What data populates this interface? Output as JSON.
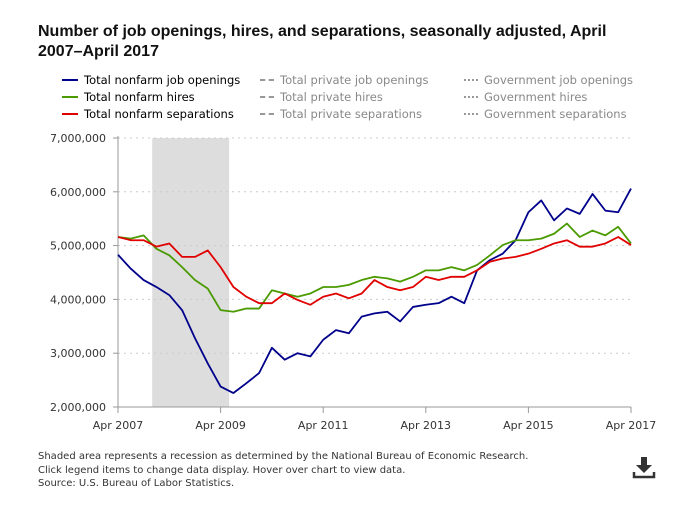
{
  "title": "Number of job openings, hires, and separations, seasonally adjusted, April 2007–April 2017",
  "legend": [
    {
      "label": "Total nonfarm job openings",
      "color": "#00008b",
      "style": "solid",
      "active": true
    },
    {
      "label": "Total nonfarm hires",
      "color": "#4a9a00",
      "style": "solid",
      "active": true
    },
    {
      "label": "Total nonfarm separations",
      "color": "#e00000",
      "style": "solid",
      "active": true
    },
    {
      "label": "Total private job openings",
      "color": "#999999",
      "style": "dashed",
      "active": false
    },
    {
      "label": "Total private hires",
      "color": "#999999",
      "style": "dashed",
      "active": false
    },
    {
      "label": "Total private separations",
      "color": "#999999",
      "style": "dashed",
      "active": false
    },
    {
      "label": "Government job openings",
      "color": "#999999",
      "style": "dash-dot",
      "active": false
    },
    {
      "label": "Government hires",
      "color": "#999999",
      "style": "dash-dot",
      "active": false
    },
    {
      "label": "Government separations",
      "color": "#999999",
      "style": "dash-dot",
      "active": false
    }
  ],
  "chart_data": {
    "type": "line",
    "title": "Number of job openings, hires, and separations, seasonally adjusted, April 2007–April 2017",
    "xlabel": "",
    "ylabel": "",
    "ylim": [
      2000000,
      7000000
    ],
    "yticks": [
      "2,000,000",
      "3,000,000",
      "4,000,000",
      "5,000,000",
      "6,000,000",
      "7,000,000"
    ],
    "ytick_values": [
      2000000,
      3000000,
      4000000,
      5000000,
      6000000,
      7000000
    ],
    "xticks": [
      "Apr 2007",
      "Apr 2009",
      "Apr 2011",
      "Apr 2013",
      "Apr 2015",
      "Apr 2017"
    ],
    "xtick_values": [
      "2007-04",
      "2009-04",
      "2011-04",
      "2013-04",
      "2015-04",
      "2017-04"
    ],
    "grid": "horizontal dotted",
    "recession_shading": {
      "start": "2007-12",
      "end": "2009-06",
      "color": "#dddddd"
    },
    "x": [
      "2007-04",
      "2007-07",
      "2007-10",
      "2008-01",
      "2008-04",
      "2008-07",
      "2008-10",
      "2009-01",
      "2009-04",
      "2009-07",
      "2009-10",
      "2010-01",
      "2010-04",
      "2010-07",
      "2010-10",
      "2011-01",
      "2011-04",
      "2011-07",
      "2011-10",
      "2012-01",
      "2012-04",
      "2012-07",
      "2012-10",
      "2013-01",
      "2013-04",
      "2013-07",
      "2013-10",
      "2014-01",
      "2014-04",
      "2014-07",
      "2014-10",
      "2015-01",
      "2015-04",
      "2015-07",
      "2015-10",
      "2016-01",
      "2016-04",
      "2016-07",
      "2016-10",
      "2017-01",
      "2017-04"
    ],
    "series": [
      {
        "name": "Total nonfarm job openings",
        "color": "#00008b",
        "values": [
          4830000,
          4570000,
          4360000,
          4230000,
          4080000,
          3800000,
          3280000,
          2810000,
          2380000,
          2260000,
          2440000,
          2630000,
          3100000,
          2880000,
          3000000,
          2940000,
          3250000,
          3430000,
          3370000,
          3680000,
          3740000,
          3770000,
          3590000,
          3860000,
          3900000,
          3930000,
          4050000,
          3930000,
          4540000,
          4730000,
          4850000,
          5100000,
          5620000,
          5840000,
          5470000,
          5690000,
          5590000,
          5960000,
          5650000,
          5620000,
          6060000
        ]
      },
      {
        "name": "Total nonfarm hires",
        "color": "#4a9a00",
        "values": [
          5160000,
          5130000,
          5190000,
          4940000,
          4820000,
          4600000,
          4360000,
          4200000,
          3800000,
          3770000,
          3830000,
          3830000,
          4170000,
          4110000,
          4050000,
          4110000,
          4230000,
          4230000,
          4270000,
          4360000,
          4420000,
          4390000,
          4330000,
          4420000,
          4540000,
          4540000,
          4600000,
          4540000,
          4640000,
          4820000,
          5010000,
          5100000,
          5100000,
          5130000,
          5220000,
          5410000,
          5160000,
          5280000,
          5190000,
          5350000,
          5040000
        ]
      },
      {
        "name": "Total nonfarm separations",
        "color": "#e00000",
        "values": [
          5160000,
          5100000,
          5100000,
          4980000,
          5040000,
          4790000,
          4790000,
          4910000,
          4600000,
          4230000,
          4050000,
          3930000,
          3930000,
          4110000,
          3990000,
          3900000,
          4050000,
          4110000,
          4020000,
          4110000,
          4360000,
          4230000,
          4170000,
          4230000,
          4420000,
          4360000,
          4420000,
          4420000,
          4540000,
          4700000,
          4760000,
          4790000,
          4850000,
          4940000,
          5040000,
          5100000,
          4980000,
          4980000,
          5040000,
          5160000,
          5010000
        ]
      }
    ]
  },
  "footer": {
    "line1": "Shaded area represents a recession as determined by the National Bureau of Economic Research.",
    "line2": "Click legend items to change data display. Hover over chart to view data.",
    "line3": "Source: U.S. Bureau of Labor Statistics."
  },
  "download_icon": "download-icon"
}
